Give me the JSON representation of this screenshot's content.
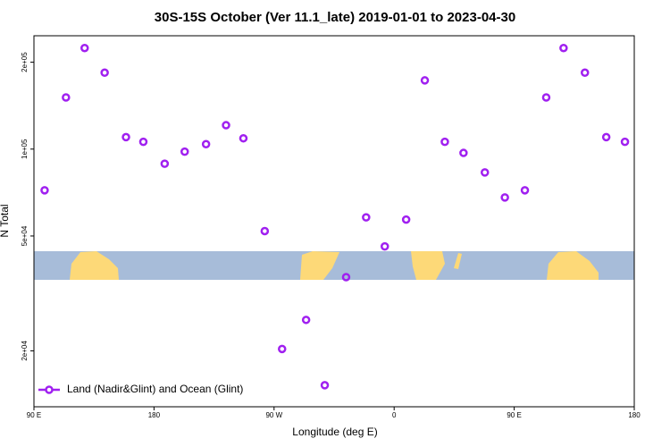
{
  "chart_data": {
    "type": "scatter",
    "title": "30S-15S October (Ver 11.1_late)   2019-01-01 to 2023-04-30",
    "x_label": "Longitude (deg E)",
    "y_label": "N Total",
    "log_y": true,
    "xlim": [
      90,
      540
    ],
    "ylim": [
      12800,
      247000
    ],
    "xticks": [
      {
        "value": 90,
        "label": "90 E"
      },
      180,
      {
        "value": 270,
        "label": "90 W"
      },
      {
        "value": 360,
        "label": "0"
      },
      {
        "value": 450,
        "label": "90 E"
      },
      {
        "value": 540,
        "label": "180"
      }
    ],
    "yticks": [
      {
        "value": 20000,
        "label": "2e+04"
      },
      {
        "value": 50000,
        "label": "5e+04"
      },
      {
        "value": 100000,
        "label": "1e+05"
      },
      {
        "value": 200000,
        "label": "2e+05"
      }
    ],
    "legend": "bottom-left",
    "series": [
      {
        "name": "Land (Nadir&Glint) and Ocean (Glint)",
        "color": "#a020f0",
        "x": [
          98,
          114,
          128,
          143,
          159,
          172,
          188,
          203,
          219,
          234,
          247,
          263,
          276,
          294,
          308,
          324,
          339,
          353,
          369,
          383,
          398,
          412,
          428,
          443,
          458,
          474,
          487,
          503,
          519,
          533
        ],
        "values": [
          72000,
          151000,
          224000,
          184000,
          110000,
          106000,
          89000,
          98000,
          104000,
          121000,
          109000,
          52000,
          20300,
          25600,
          15200,
          36000,
          58000,
          46000,
          57000,
          173000,
          106000,
          97000,
          83000,
          68000,
          72000,
          151000,
          224000,
          184000,
          110000,
          106000
        ]
      }
    ]
  }
}
